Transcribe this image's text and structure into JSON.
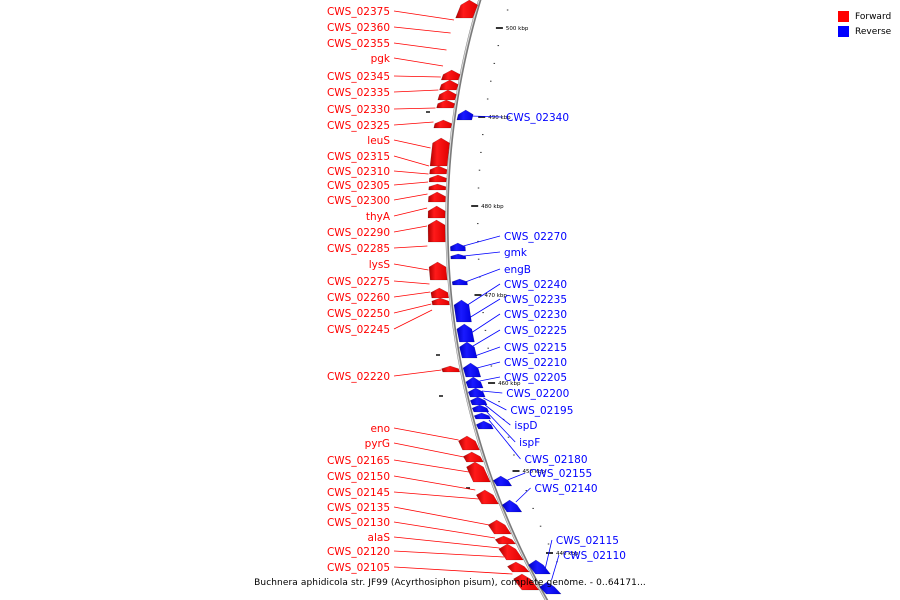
{
  "caption": "Buchnera aphidicola str. JF99 (Acyrthosiphon pisum), complete genome. - 0..64171...",
  "legend": [
    {
      "label": "Forward",
      "color": "#ff0000"
    },
    {
      "label": "Reverse",
      "color": "#0000ff"
    }
  ],
  "ticks": [
    "500 kbp",
    "490 kbp",
    "480 kbp",
    "470 kbp",
    "460 kbp",
    "450 kbp",
    "440 kbp"
  ],
  "forward_labels": [
    "CWS_02375",
    "CWS_02360",
    "CWS_02355",
    "pgk",
    "CWS_02345",
    "CWS_02335",
    "CWS_02330",
    "CWS_02325",
    "leuS",
    "CWS_02315",
    "CWS_02310",
    "CWS_02305",
    "CWS_02300",
    "thyA",
    "CWS_02290",
    "CWS_02285",
    "lysS",
    "CWS_02275",
    "CWS_02260",
    "CWS_02250",
    "CWS_02245",
    "CWS_02220",
    "eno",
    "pyrG",
    "CWS_02165",
    "CWS_02150",
    "CWS_02145",
    "CWS_02135",
    "CWS_02130",
    "alaS",
    "CWS_02120",
    "CWS_02105"
  ],
  "reverse_labels": [
    "CWS_02340",
    "CWS_02270",
    "gmk",
    "engB",
    "CWS_02240",
    "CWS_02235",
    "CWS_02230",
    "CWS_02225",
    "CWS_02215",
    "CWS_02210",
    "CWS_02205",
    "CWS_02200",
    "CWS_02195",
    "ispD",
    "ispF",
    "CWS_02180",
    "CWS_02155",
    "CWS_02140",
    "CWS_02115",
    "CWS_02110"
  ]
}
